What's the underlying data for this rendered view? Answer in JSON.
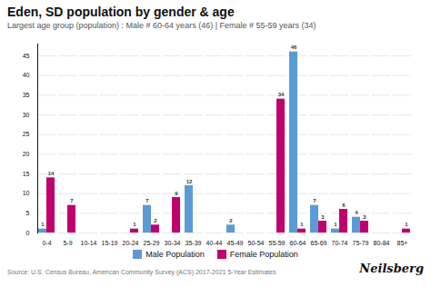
{
  "chart_data": {
    "type": "bar",
    "title": "Eden, SD population by gender & age",
    "subtitle": "Largest age group (population) : Male # 60-64 years (46) | Female # 55-59 years (34)",
    "caption": "Source: U.S. Census Bureau, American Community Survey (ACS) 2017-2021 5-Year Estimates",
    "annotations": [
      "Neilsberg"
    ],
    "categories": [
      "0-4",
      "5-9",
      "10-14",
      "15-19",
      "20-24",
      "25-29",
      "30-34",
      "35-39",
      "40-44",
      "45-49",
      "50-54",
      "55-59",
      "60-64",
      "65-69",
      "70-74",
      "75-79",
      "80-84",
      "85+"
    ],
    "series": [
      {
        "name": "Male Population",
        "color": "#5B9BD5",
        "values": [
          1,
          0,
          0,
          0,
          0,
          7,
          0,
          12,
          0,
          2,
          0,
          0,
          46,
          7,
          1,
          4,
          0,
          0
        ]
      },
      {
        "name": "Female Population",
        "color": "#C0006D",
        "values": [
          14,
          7,
          0,
          0,
          1,
          2,
          9,
          0,
          0,
          0,
          0,
          34,
          1,
          3,
          6,
          3,
          0,
          1
        ]
      }
    ],
    "ylim": [
      0,
      48
    ],
    "yticks": [
      0,
      5,
      10,
      15,
      20,
      25,
      30,
      35,
      40,
      45
    ],
    "grid": true,
    "data_labels": true,
    "legend": "bottom"
  }
}
